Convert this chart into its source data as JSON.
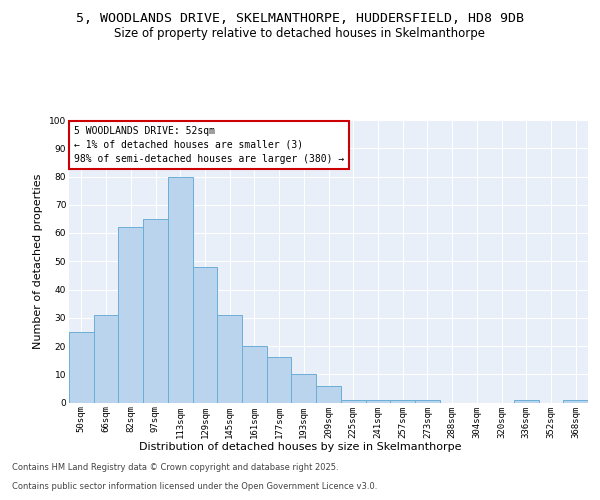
{
  "title_line1": "5, WOODLANDS DRIVE, SKELMANTHORPE, HUDDERSFIELD, HD8 9DB",
  "title_line2": "Size of property relative to detached houses in Skelmanthorpe",
  "xlabel": "Distribution of detached houses by size in Skelmanthorpe",
  "ylabel": "Number of detached properties",
  "categories": [
    "50sqm",
    "66sqm",
    "82sqm",
    "97sqm",
    "113sqm",
    "129sqm",
    "145sqm",
    "161sqm",
    "177sqm",
    "193sqm",
    "209sqm",
    "225sqm",
    "241sqm",
    "257sqm",
    "273sqm",
    "288sqm",
    "304sqm",
    "320sqm",
    "336sqm",
    "352sqm",
    "368sqm"
  ],
  "values": [
    25,
    31,
    62,
    65,
    80,
    48,
    31,
    20,
    16,
    10,
    6,
    1,
    1,
    1,
    1,
    0,
    0,
    0,
    1,
    0,
    1
  ],
  "bar_color": "#bad4ed",
  "bar_edge_color": "#6aaed6",
  "annotation_box_color": "#ffffff",
  "annotation_box_edge": "#cc0000",
  "annotation_text": "5 WOODLANDS DRIVE: 52sqm\n← 1% of detached houses are smaller (3)\n98% of semi-detached houses are larger (380) →",
  "ylim": [
    0,
    100
  ],
  "yticks": [
    0,
    10,
    20,
    30,
    40,
    50,
    60,
    70,
    80,
    90,
    100
  ],
  "bg_color": "#e8eff8",
  "footer_line1": "Contains HM Land Registry data © Crown copyright and database right 2025.",
  "footer_line2": "Contains public sector information licensed under the Open Government Licence v3.0.",
  "title_fontsize": 9.5,
  "subtitle_fontsize": 8.5,
  "axis_label_fontsize": 8,
  "tick_fontsize": 6.5,
  "annotation_fontsize": 7,
  "footer_fontsize": 6
}
